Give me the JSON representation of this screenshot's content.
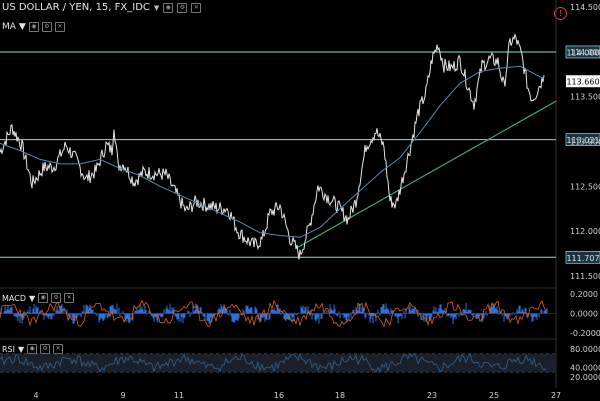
{
  "header": {
    "symbol_title": "US DOLLAR / YEN, 15, FX_IDC",
    "indicator_label": "MA",
    "macd_label": "MACD",
    "rsi_label": "RSI",
    "alert_glyph": "!"
  },
  "colors": {
    "background": "#000000",
    "price": "#e6e6e6",
    "ma": "#5c87a8",
    "trendline": "#3fa56f",
    "hline": "#9fd4e0",
    "macd_line": "#d8601e",
    "macd_hist": "#2f6fd8",
    "rsi_line": "#2e5d8a",
    "rsi_band": "#1a1f2a",
    "axis_text": "#cfcfcf",
    "current_label_bg": "#ffffff"
  },
  "chart_data": [
    {
      "type": "line",
      "title": "US DOLLAR / YEN, 15, FX_IDC",
      "x_ticks": [
        "4",
        "9",
        "11",
        "16",
        "18",
        "23",
        "25",
        "27"
      ],
      "y_ticks": [
        "114.500",
        "114.000",
        "113.500",
        "113.000",
        "112.500",
        "112.000",
        "111.500"
      ],
      "ylim": [
        111.42,
        114.58
      ],
      "series": [
        {
          "name": "price",
          "x": [
            0,
            12,
            22,
            32,
            44,
            54,
            66,
            76,
            86,
            96,
            106,
            112,
            114,
            118,
            124,
            134,
            144,
            156,
            166,
            176,
            186,
            196,
            206,
            216,
            228,
            238,
            246,
            254,
            262,
            270,
            280,
            290,
            300,
            310,
            318,
            328,
            338,
            348,
            356,
            366,
            376,
            384,
            390,
            396,
            402,
            410,
            418,
            426,
            432,
            438,
            444,
            452,
            460,
            468,
            474,
            482,
            490,
            498,
            504,
            510,
            516,
            522,
            528,
            532,
            536,
            544
          ],
          "y": [
            112.88,
            113.16,
            112.95,
            112.53,
            112.71,
            112.72,
            112.96,
            112.8,
            112.58,
            112.67,
            112.96,
            112.9,
            113.2,
            112.73,
            112.75,
            112.55,
            112.66,
            112.64,
            112.63,
            112.42,
            112.22,
            112.33,
            112.29,
            112.26,
            112.25,
            112.0,
            111.91,
            111.84,
            111.9,
            112.2,
            112.28,
            111.92,
            111.73,
            112.08,
            112.5,
            112.38,
            112.27,
            112.13,
            112.34,
            112.95,
            113.12,
            112.94,
            112.34,
            112.29,
            112.56,
            112.92,
            113.32,
            113.55,
            113.92,
            114.09,
            113.85,
            113.82,
            113.91,
            113.62,
            113.42,
            113.85,
            113.92,
            113.89,
            113.61,
            114.11,
            114.15,
            113.94,
            113.6,
            113.48,
            113.54,
            113.74
          ]
        },
        {
          "name": "MA",
          "x": [
            0,
            20,
            40,
            60,
            80,
            100,
            120,
            140,
            160,
            180,
            200,
            220,
            240,
            260,
            280,
            300,
            320,
            340,
            360,
            380,
            400,
            420,
            440,
            460,
            480,
            500,
            520,
            544
          ],
          "y": [
            112.98,
            112.9,
            112.8,
            112.75,
            112.75,
            112.8,
            112.7,
            112.62,
            112.5,
            112.4,
            112.3,
            112.2,
            112.1,
            111.98,
            111.95,
            111.93,
            112.04,
            112.25,
            112.45,
            112.65,
            112.82,
            113.1,
            113.4,
            113.65,
            113.78,
            113.82,
            113.84,
            113.7
          ]
        }
      ],
      "horizontal_levels": [
        114.0,
        113.021,
        111.707
      ],
      "level_labels": [
        "114.000",
        "113.021",
        "111.707"
      ],
      "current_price_label": "113.660",
      "trendline": {
        "x": [
          298,
          556
        ],
        "y": [
          111.82,
          113.45
        ]
      },
      "grid": false
    },
    {
      "type": "bar",
      "name": "MACD",
      "y_ticks": [
        "0.2000",
        "0.0000",
        "-0.2000"
      ],
      "ylim": [
        -0.25,
        0.25
      ]
    },
    {
      "type": "line",
      "name": "RSI",
      "y_ticks": [
        "80.0000",
        "40.0000",
        "20.0000"
      ],
      "ylim": [
        0,
        100
      ],
      "band": [
        30,
        70
      ]
    }
  ]
}
